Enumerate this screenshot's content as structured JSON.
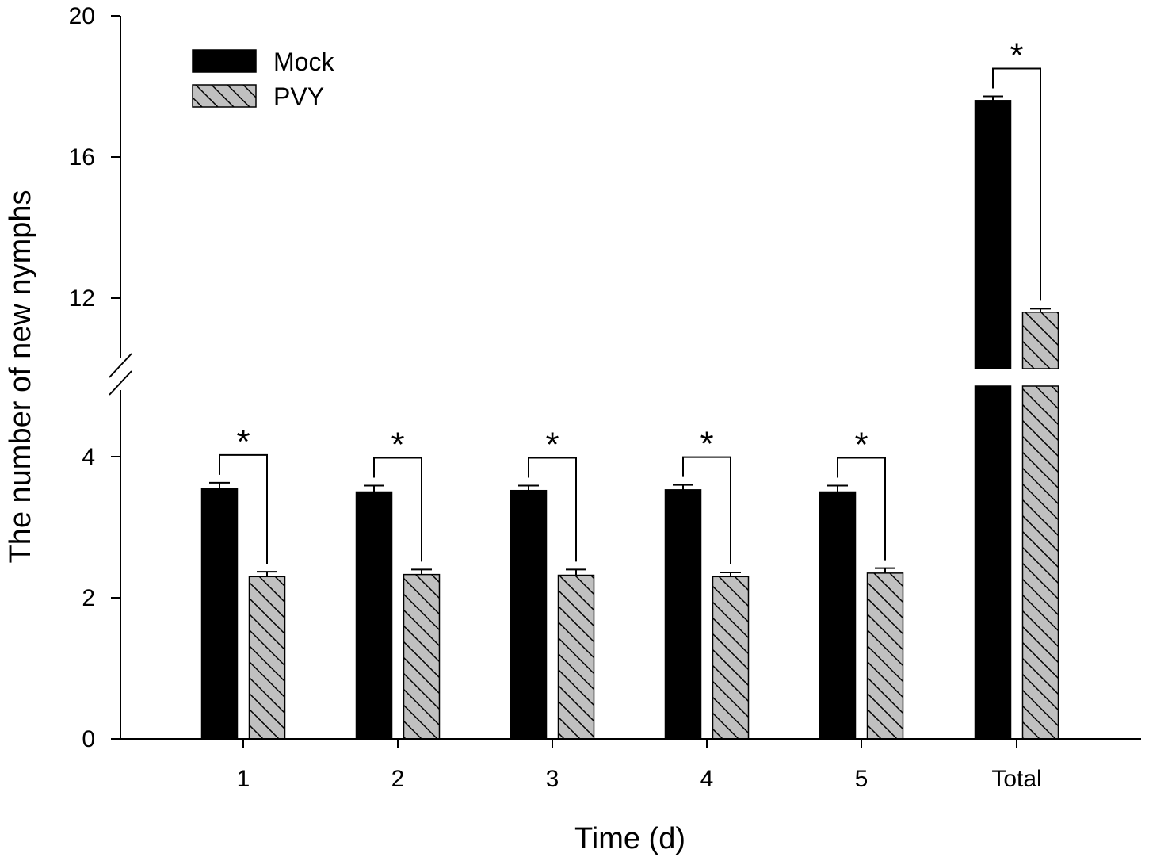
{
  "chart_data": {
    "type": "bar",
    "title": "",
    "xlabel": "Time (d)",
    "ylabel": "The number of new nymphs",
    "categories": [
      "1",
      "2",
      "3",
      "4",
      "5",
      "Total"
    ],
    "series": [
      {
        "name": "Mock",
        "fill": "#000000",
        "pattern": "solid",
        "values": [
          3.55,
          3.5,
          3.52,
          3.53,
          3.5,
          17.6
        ],
        "errors": [
          0.08,
          0.09,
          0.07,
          0.07,
          0.09,
          0.12
        ]
      },
      {
        "name": "PVY",
        "fill": "#c0c0c0",
        "pattern": "hatch",
        "values": [
          2.3,
          2.33,
          2.32,
          2.3,
          2.35,
          11.6
        ],
        "errors": [
          0.07,
          0.07,
          0.08,
          0.06,
          0.07,
          0.1
        ]
      }
    ],
    "significance": [
      "*",
      "*",
      "*",
      "*",
      "*",
      "*"
    ],
    "y_axis": {
      "lower_segment": [
        0,
        5
      ],
      "upper_segment": [
        10,
        20
      ],
      "lower_ticks": [
        "0",
        "2",
        "4"
      ],
      "lower_tick_values": [
        0,
        2,
        4
      ],
      "upper_ticks": [
        "12",
        "16",
        "20"
      ],
      "upper_tick_values": [
        12,
        16,
        20
      ],
      "axis_break": true
    },
    "legend": {
      "position": "top-left"
    },
    "grid": false
  }
}
